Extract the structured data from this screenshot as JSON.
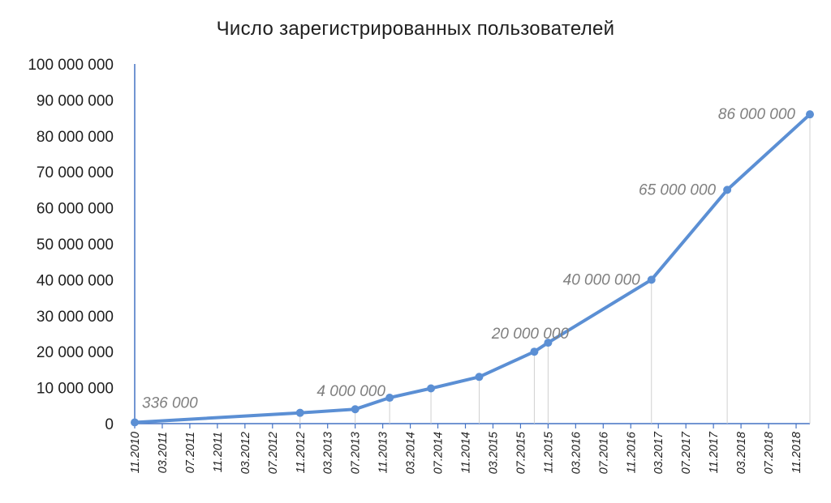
{
  "chart_data": {
    "type": "line",
    "title": "Число зарегистрированных  пользователей",
    "xlabel": "",
    "ylabel": "",
    "ylim": [
      0,
      100000000
    ],
    "yticks": [
      0,
      10000000,
      20000000,
      30000000,
      40000000,
      50000000,
      60000000,
      70000000,
      80000000,
      90000000,
      100000000
    ],
    "ytick_labels": [
      "0",
      "10 000 000",
      "20 000 000",
      "30 000 000",
      "40 000 000",
      "50 000 000",
      "60 000 000",
      "70 000 000",
      "80 000 000",
      "90 000 000",
      "100 000 000"
    ],
    "xlim": [
      "2010-11",
      "2019-01"
    ],
    "xticks": [
      "2010-11",
      "2011-03",
      "2011-07",
      "2011-11",
      "2012-03",
      "2012-07",
      "2012-11",
      "2013-03",
      "2013-07",
      "2013-11",
      "2014-03",
      "2014-07",
      "2014-11",
      "2015-03",
      "2015-07",
      "2015-11",
      "2016-03",
      "2016-07",
      "2016-11",
      "2017-03",
      "2017-07",
      "2017-11",
      "2018-03",
      "2018-07",
      "2018-11"
    ],
    "xtick_labels": [
      "11.2010",
      "03.2011",
      "07.2011",
      "11.2011",
      "03.2012",
      "07.2012",
      "11.2012",
      "03.2013",
      "07.2013",
      "11.2013",
      "03.2014",
      "07.2014",
      "11.2014",
      "03.2015",
      "07.2015",
      "11.2015",
      "03.2016",
      "07.2016",
      "11.2016",
      "03.2017",
      "07.2017",
      "11.2017",
      "03.2018",
      "07.2018",
      "11.2018"
    ],
    "grid": false,
    "drop_lines": true,
    "line_color": "#5b8fd4",
    "label_color": "#7f7f7f",
    "axis_color": "#4472c4",
    "points": [
      {
        "x": "2010-11",
        "y": 336000,
        "label": "336 000"
      },
      {
        "x": "2012-11",
        "y": 3000000,
        "label": ""
      },
      {
        "x": "2013-07",
        "y": 4000000,
        "label": "4 000 000"
      },
      {
        "x": "2013-12",
        "y": 7200000,
        "label": ""
      },
      {
        "x": "2014-06",
        "y": 9800000,
        "label": ""
      },
      {
        "x": "2015-01",
        "y": 13000000,
        "label": ""
      },
      {
        "x": "2015-09",
        "y": 20000000,
        "label": "20 000 000"
      },
      {
        "x": "2015-11",
        "y": 22500000,
        "label": ""
      },
      {
        "x": "2017-02",
        "y": 40000000,
        "label": "40 000 000"
      },
      {
        "x": "2018-01",
        "y": 65000000,
        "label": "65 000 000"
      },
      {
        "x": "2019-01",
        "y": 86000000,
        "label": "86 000 000"
      }
    ]
  }
}
